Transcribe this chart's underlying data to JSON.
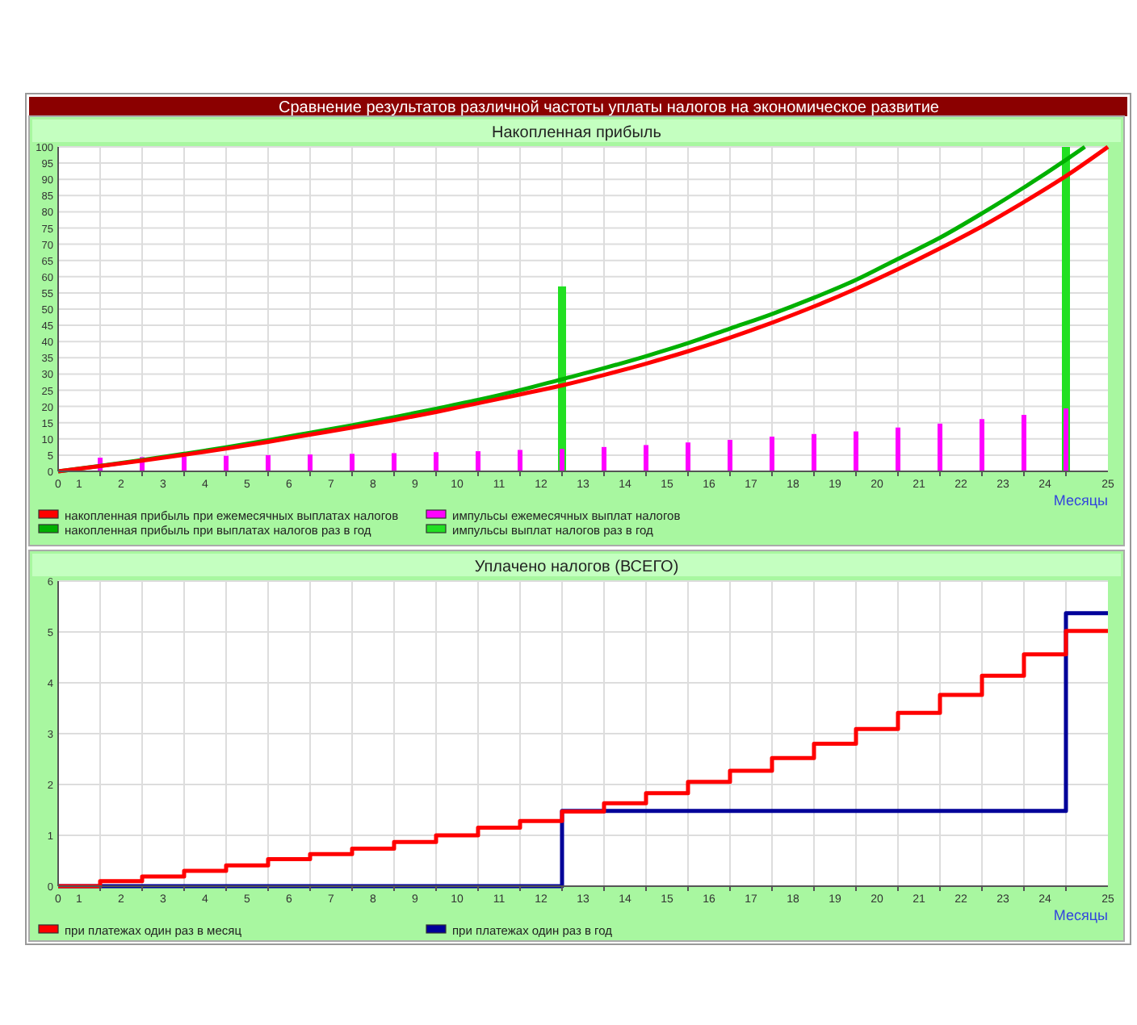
{
  "chart_data": [
    {
      "type": "line",
      "title": "Сравнение результатов различной частоты уплаты налогов на экономическое развитие",
      "subtitle": "Накопленная прибыль",
      "xlabel": "Месяцы",
      "xlim": [
        0,
        25
      ],
      "ylim": [
        0,
        100
      ],
      "xticks": [
        {
          "value": 0,
          "label": "0"
        },
        {
          "value": 0.5,
          "label": "1"
        },
        {
          "value": 1.5,
          "label": "2"
        },
        {
          "value": 2.5,
          "label": "3"
        },
        {
          "value": 3.5,
          "label": "4"
        },
        {
          "value": 4.5,
          "label": "5"
        },
        {
          "value": 5.5,
          "label": "6"
        },
        {
          "value": 6.5,
          "label": "7"
        },
        {
          "value": 7.5,
          "label": "8"
        },
        {
          "value": 8.5,
          "label": "9"
        },
        {
          "value": 9.5,
          "label": "10"
        },
        {
          "value": 10.5,
          "label": "11"
        },
        {
          "value": 11.5,
          "label": "12"
        },
        {
          "value": 12.5,
          "label": "13"
        },
        {
          "value": 13.5,
          "label": "14"
        },
        {
          "value": 14.5,
          "label": "15"
        },
        {
          "value": 15.5,
          "label": "16"
        },
        {
          "value": 16.5,
          "label": "17"
        },
        {
          "value": 17.5,
          "label": "18"
        },
        {
          "value": 18.5,
          "label": "19"
        },
        {
          "value": 19.5,
          "label": "20"
        },
        {
          "value": 20.5,
          "label": "21"
        },
        {
          "value": 21.5,
          "label": "22"
        },
        {
          "value": 22.5,
          "label": "23"
        },
        {
          "value": 23.5,
          "label": "24"
        },
        {
          "value": 25,
          "label": "25"
        },
        {
          "value": 1,
          "label": null
        },
        {
          "value": 2,
          "label": null
        },
        {
          "value": 3,
          "label": null
        },
        {
          "value": 4,
          "label": null
        },
        {
          "value": 5,
          "label": null
        },
        {
          "value": 6,
          "label": null
        },
        {
          "value": 7,
          "label": null
        },
        {
          "value": 8,
          "label": null
        },
        {
          "value": 9,
          "label": null
        },
        {
          "value": 10,
          "label": null
        },
        {
          "value": 11,
          "label": null
        },
        {
          "value": 12,
          "label": null
        },
        {
          "value": 13,
          "label": null
        },
        {
          "value": 14,
          "label": null
        },
        {
          "value": 15,
          "label": null
        },
        {
          "value": 16,
          "label": null
        },
        {
          "value": 17,
          "label": null
        },
        {
          "value": 18,
          "label": null
        },
        {
          "value": 19,
          "label": null
        },
        {
          "value": 20,
          "label": null
        },
        {
          "value": 21,
          "label": null
        },
        {
          "value": 22,
          "label": null
        },
        {
          "value": 23,
          "label": null
        },
        {
          "value": 24,
          "label": null
        }
      ],
      "yticks": [
        0,
        5,
        10,
        15,
        20,
        25,
        30,
        35,
        40,
        45,
        50,
        55,
        60,
        65,
        70,
        75,
        80,
        85,
        90,
        95,
        100
      ],
      "grid": true,
      "legend": "bottom",
      "series": [
        {
          "name": "накопленная прибыль при ежемесячных выплатах налогов",
          "type": "line",
          "color": "#ff0000",
          "x": [
            0,
            1,
            2,
            3,
            4,
            5,
            6,
            7,
            8,
            9,
            10,
            11,
            12,
            13,
            14,
            15,
            16,
            17,
            18,
            19,
            20,
            21,
            22,
            23,
            24,
            25
          ],
          "values": [
            0,
            1.6,
            3.3,
            5.1,
            7,
            9.1,
            11.3,
            13.5,
            15.8,
            18.3,
            21,
            23.7,
            26.5,
            29.7,
            33.2,
            37,
            41.2,
            45.8,
            50.8,
            56.3,
            62.3,
            68.7,
            75.5,
            83,
            91,
            100
          ]
        },
        {
          "name": "импульсы ежемесячных выплат налогов",
          "type": "bar",
          "color": "#ff00ff",
          "x": [
            1,
            2,
            3,
            4,
            5,
            6,
            7,
            8,
            9,
            10,
            11,
            12,
            13,
            14,
            15,
            16,
            17,
            18,
            19,
            20,
            21,
            22,
            23,
            24
          ],
          "values": [
            4.2,
            4.4,
            4.6,
            4.8,
            5,
            5.2,
            5.4,
            5.6,
            5.9,
            6.2,
            6.6,
            6.9,
            7.5,
            8.1,
            8.9,
            9.7,
            10.7,
            11.5,
            12.3,
            13.5,
            14.7,
            16.1,
            17.4,
            19.4
          ]
        },
        {
          "name": "накопленная прибыль при выплатах налогов раз в год",
          "type": "line",
          "color": "#00b000",
          "x": [
            0,
            1,
            2,
            3,
            4,
            5,
            6,
            7,
            8,
            9,
            10,
            11,
            12,
            13,
            14,
            15,
            16,
            17,
            18,
            19,
            20,
            21,
            22,
            23,
            24,
            24.45
          ],
          "values": [
            0,
            1.7,
            3.5,
            5.4,
            7.4,
            9.6,
            11.9,
            14.2,
            16.7,
            19.3,
            22,
            25,
            28.4,
            31.8,
            35.5,
            39.5,
            44,
            48.5,
            53.5,
            59,
            65.5,
            72,
            79.5,
            87.5,
            96,
            100
          ]
        },
        {
          "name": "импульсы выплат налогов раз в год",
          "type": "bar",
          "color": "#22e022",
          "x": [
            12,
            24
          ],
          "values": [
            57,
            100
          ]
        }
      ]
    },
    {
      "type": "step",
      "title": "Уплачено налогов (ВСЕГО)",
      "xlabel": "Месяцы",
      "xlim": [
        0,
        25
      ],
      "ylim": [
        0,
        6
      ],
      "xticks": [
        {
          "value": 0,
          "label": "0"
        },
        {
          "value": 0.5,
          "label": "1"
        },
        {
          "value": 1.5,
          "label": "2"
        },
        {
          "value": 2.5,
          "label": "3"
        },
        {
          "value": 3.5,
          "label": "4"
        },
        {
          "value": 4.5,
          "label": "5"
        },
        {
          "value": 5.5,
          "label": "6"
        },
        {
          "value": 6.5,
          "label": "7"
        },
        {
          "value": 7.5,
          "label": "8"
        },
        {
          "value": 8.5,
          "label": "9"
        },
        {
          "value": 9.5,
          "label": "10"
        },
        {
          "value": 10.5,
          "label": "11"
        },
        {
          "value": 11.5,
          "label": "12"
        },
        {
          "value": 12.5,
          "label": "13"
        },
        {
          "value": 13.5,
          "label": "14"
        },
        {
          "value": 14.5,
          "label": "15"
        },
        {
          "value": 15.5,
          "label": "16"
        },
        {
          "value": 16.5,
          "label": "17"
        },
        {
          "value": 17.5,
          "label": "18"
        },
        {
          "value": 18.5,
          "label": "19"
        },
        {
          "value": 19.5,
          "label": "20"
        },
        {
          "value": 20.5,
          "label": "21"
        },
        {
          "value": 21.5,
          "label": "22"
        },
        {
          "value": 22.5,
          "label": "23"
        },
        {
          "value": 23.5,
          "label": "24"
        },
        {
          "value": 25,
          "label": "25"
        },
        {
          "value": 1,
          "label": null
        },
        {
          "value": 2,
          "label": null
        },
        {
          "value": 3,
          "label": null
        },
        {
          "value": 4,
          "label": null
        },
        {
          "value": 5,
          "label": null
        },
        {
          "value": 6,
          "label": null
        },
        {
          "value": 7,
          "label": null
        },
        {
          "value": 8,
          "label": null
        },
        {
          "value": 9,
          "label": null
        },
        {
          "value": 10,
          "label": null
        },
        {
          "value": 11,
          "label": null
        },
        {
          "value": 12,
          "label": null
        },
        {
          "value": 13,
          "label": null
        },
        {
          "value": 14,
          "label": null
        },
        {
          "value": 15,
          "label": null
        },
        {
          "value": 16,
          "label": null
        },
        {
          "value": 17,
          "label": null
        },
        {
          "value": 18,
          "label": null
        },
        {
          "value": 19,
          "label": null
        },
        {
          "value": 20,
          "label": null
        },
        {
          "value": 21,
          "label": null
        },
        {
          "value": 22,
          "label": null
        },
        {
          "value": 23,
          "label": null
        },
        {
          "value": 24,
          "label": null
        }
      ],
      "yticks": [
        0,
        1,
        2,
        3,
        4,
        5,
        6
      ],
      "grid": true,
      "legend": "bottom",
      "series": [
        {
          "name": "при платежах один раз в месяц",
          "color": "#ff0000",
          "x": [
            0,
            1,
            2,
            3,
            4,
            5,
            6,
            7,
            8,
            9,
            10,
            11,
            12,
            13,
            14,
            15,
            16,
            17,
            18,
            19,
            20,
            21,
            22,
            23,
            24,
            25
          ],
          "values": [
            0,
            0.1,
            0.19,
            0.3,
            0.41,
            0.53,
            0.63,
            0.74,
            0.87,
            1,
            1.15,
            1.28,
            1.47,
            1.63,
            1.83,
            2.05,
            2.27,
            2.52,
            2.8,
            3.09,
            3.41,
            3.76,
            4.14,
            4.56,
            5.02,
            5.02
          ]
        },
        {
          "name": "при платежах один раз в год",
          "color": "#000099",
          "x": [
            0,
            1,
            2,
            3,
            4,
            5,
            6,
            7,
            8,
            9,
            10,
            11,
            12,
            13,
            14,
            15,
            16,
            17,
            18,
            19,
            20,
            21,
            22,
            23,
            24,
            25
          ],
          "values": [
            0,
            0,
            0,
            0,
            0,
            0,
            0,
            0,
            0,
            0,
            0,
            0,
            1.48,
            1.48,
            1.48,
            1.48,
            1.48,
            1.48,
            1.48,
            1.48,
            1.48,
            1.48,
            1.48,
            1.48,
            5.37,
            5.37
          ]
        }
      ]
    }
  ]
}
